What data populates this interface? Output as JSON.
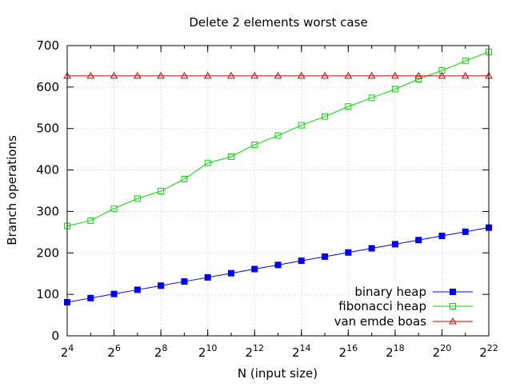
{
  "chart_data": {
    "type": "line",
    "title": "Delete 2 elements worst case",
    "xlabel": "N (input size)",
    "ylabel": "Branch operations",
    "x_scale": "log2",
    "x_tick_base": "2",
    "x_tick_exponents": [
      "4",
      "6",
      "8",
      "10",
      "12",
      "14",
      "16",
      "18",
      "20",
      "22"
    ],
    "x_exponent_range": [
      4,
      22
    ],
    "ylim": [
      0,
      700
    ],
    "y_ticks": [
      "0",
      "100",
      "200",
      "300",
      "400",
      "500",
      "600",
      "700"
    ],
    "grid": true,
    "legend_position": "bottom-right",
    "x_exponents": [
      4,
      5,
      6,
      7,
      8,
      9,
      10,
      11,
      12,
      13,
      14,
      15,
      16,
      17,
      18,
      19,
      20,
      21,
      22
    ],
    "series": [
      {
        "name": "binary heap",
        "color": "#0000ff",
        "marker": "filled-square",
        "values": [
          81,
          91,
          101,
          111,
          121,
          131,
          141,
          151,
          161,
          171,
          181,
          191,
          201,
          211,
          221,
          231,
          241,
          251,
          261
        ]
      },
      {
        "name": "fibonacci heap",
        "color": "#00dd00",
        "marker": "open-square",
        "values": [
          265,
          278,
          307,
          331,
          349,
          378,
          417,
          432,
          461,
          483,
          508,
          529,
          553,
          574,
          595,
          619,
          640,
          663,
          685
        ]
      },
      {
        "name": "van emde boas",
        "color": "#cc0000",
        "marker": "open-triangle",
        "values": [
          627,
          627,
          627,
          627,
          627,
          627,
          627,
          627,
          627,
          627,
          627,
          627,
          627,
          627,
          627,
          627,
          627,
          627,
          627
        ]
      }
    ]
  }
}
